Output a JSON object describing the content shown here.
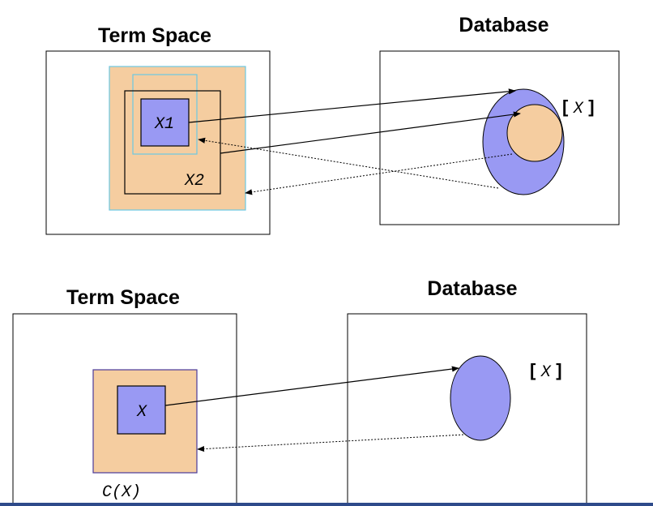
{
  "top_panel": {
    "term_space_title": "Term Space",
    "database_title": "Database",
    "inner_label_1": "X1",
    "inner_label_2": "X2",
    "class_label_open": "[",
    "class_label_var": "X",
    "class_label_close": "]"
  },
  "bottom_panel": {
    "term_space_title": "Term Space",
    "database_title": "Database",
    "inner_label": "X",
    "closure_label": "C(X)",
    "class_label_open": "[",
    "class_label_var": "X",
    "class_label_close": "]"
  },
  "colors": {
    "peach": "#f5cda0",
    "violet": "#9999f3",
    "cyan_outline": "#6cc7e3",
    "bottom_bar": "#2e4a8a"
  }
}
